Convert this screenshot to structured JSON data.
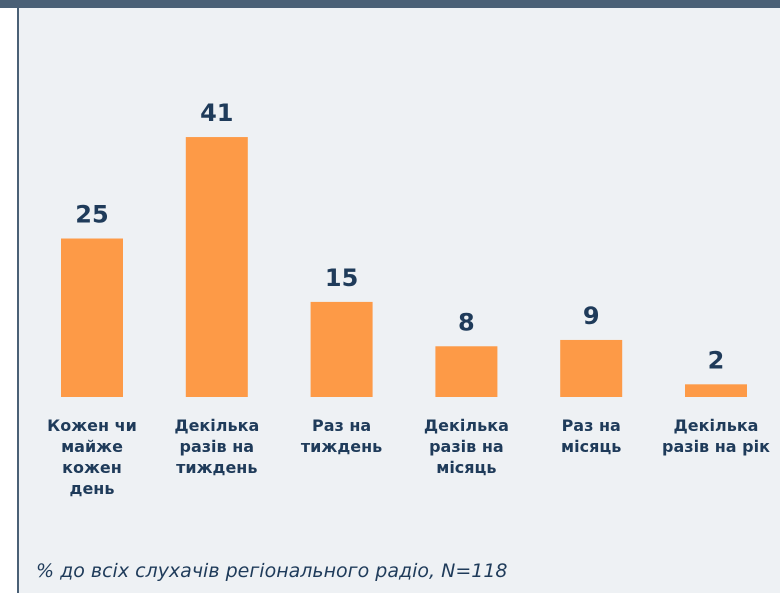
{
  "chart_data": {
    "type": "bar",
    "categories": [
      "Кожен чи майже кожен день",
      "Декілька разів на тиждень",
      "Раз на тиждень",
      "Декілька разів на місяць",
      "Раз на місяць",
      "Декілька разів на рік"
    ],
    "values": [
      25,
      41,
      15,
      8,
      9,
      2
    ],
    "color": "#fd9a47",
    "note": "% до всіх слухачів регіонального радіо, N=118"
  }
}
